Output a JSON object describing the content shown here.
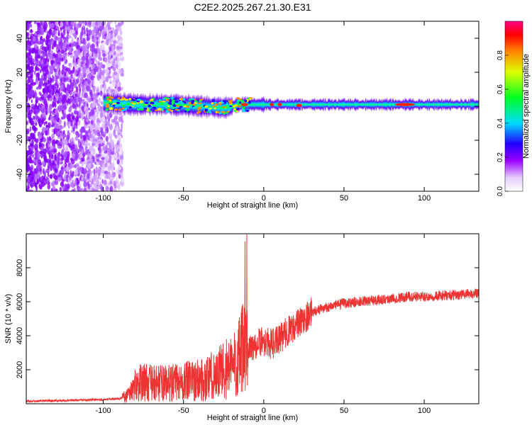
{
  "title": "C2E2.2025.267.21.30.E31",
  "chart_data": [
    {
      "type": "heatmap",
      "xlabel": "Height of straight line (km)",
      "ylabel": "Frequency (Hz)",
      "xlim": [
        -148,
        134
      ],
      "ylim": [
        -50,
        50
      ],
      "xticks": [
        -100,
        -50,
        0,
        50,
        100
      ],
      "yticks": [
        -40,
        -20,
        0,
        20,
        40
      ],
      "colorbar": {
        "label": "Normalized spectral amplitude",
        "ticks": [
          0.0,
          0.2,
          0.4,
          0.6,
          0.8
        ],
        "range": [
          0,
          1
        ]
      },
      "ridge": {
        "name": "",
        "x": [
          -100,
          -80,
          -60,
          -40,
          -25,
          -15,
          0,
          20,
          40,
          60,
          80,
          90,
          100,
          134
        ],
        "y": [
          2,
          1,
          1,
          0,
          -1,
          1,
          1,
          1,
          1,
          1,
          1,
          1,
          1,
          1
        ]
      }
    },
    {
      "type": "line",
      "xlabel": "Height of straight line (km)",
      "ylabel": "SNR (10 * v/v)",
      "xlim": [
        -148,
        134
      ],
      "ylim": [
        0,
        10000
      ],
      "xticks": [
        -100,
        -50,
        0,
        50,
        100
      ],
      "yticks": [
        2000,
        4000,
        6000,
        8000
      ],
      "series": [
        {
          "name": "",
          "x": [
            -148,
            -120,
            -100,
            -90,
            -85,
            -80,
            -75,
            -70,
            -60,
            -50,
            -40,
            -30,
            -25,
            -20,
            -15,
            -12,
            -10,
            -8,
            -5,
            0,
            5,
            10,
            15,
            20,
            25,
            30,
            40,
            50,
            60,
            70,
            80,
            90,
            100,
            110,
            120,
            134
          ],
          "y": [
            150,
            200,
            250,
            300,
            500,
            1100,
            1300,
            1200,
            1200,
            1300,
            1400,
            1700,
            2000,
            2200,
            2700,
            3400,
            3000,
            3300,
            3500,
            3700,
            3500,
            3800,
            4300,
            4600,
            5000,
            5400,
            5700,
            5900,
            6000,
            6100,
            6200,
            6300,
            6300,
            6350,
            6400,
            6500
          ]
        }
      ]
    }
  ]
}
